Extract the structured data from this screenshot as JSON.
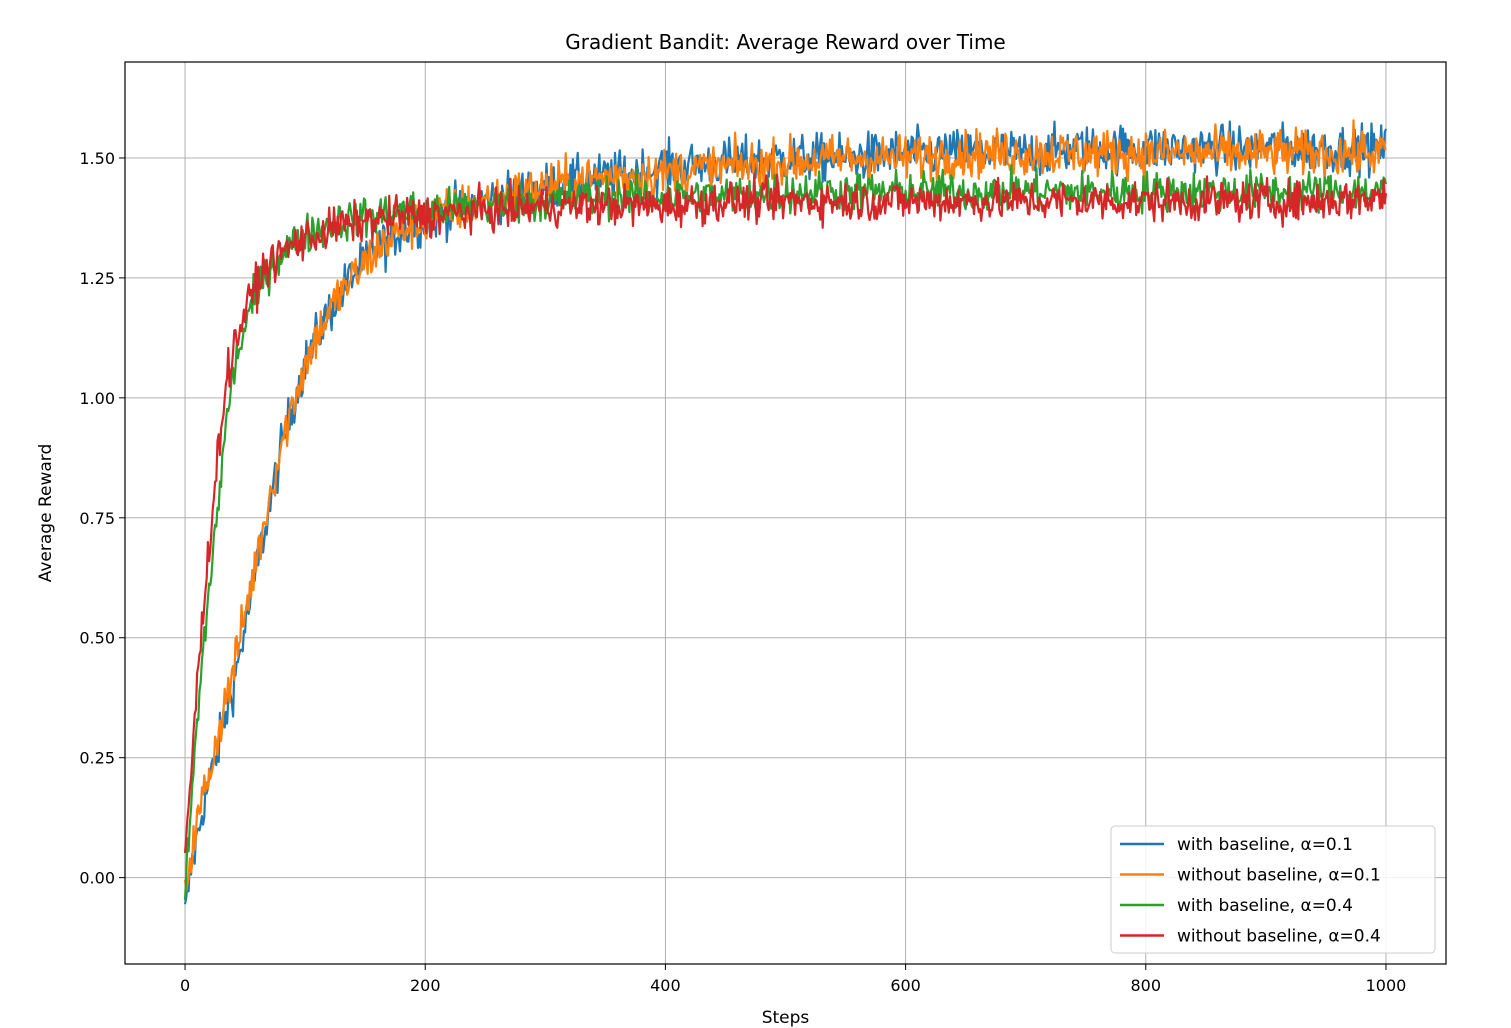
{
  "chart_data": {
    "type": "line",
    "title": "Gradient Bandit: Average Reward over Time",
    "xlabel": "Steps",
    "ylabel": "Average Reward",
    "xlim": [
      -50,
      1050
    ],
    "ylim": [
      -0.18,
      1.7
    ],
    "xticks": [
      0,
      200,
      400,
      600,
      800,
      1000
    ],
    "xtick_labels": [
      "0",
      "200",
      "400",
      "600",
      "800",
      "1000"
    ],
    "yticks": [
      0.0,
      0.25,
      0.5,
      0.75,
      1.0,
      1.25,
      1.5
    ],
    "ytick_labels": [
      "0.00",
      "0.25",
      "0.50",
      "0.75",
      "1.00",
      "1.25",
      "1.50"
    ],
    "grid": true,
    "legend_position": "lower-right",
    "series": [
      {
        "name": "with baseline, α=0.1",
        "color": "#1f77b4",
        "x": [
          0,
          5,
          10,
          15,
          20,
          25,
          30,
          40,
          50,
          60,
          70,
          80,
          90,
          100,
          110,
          120,
          130,
          140,
          150,
          160,
          170,
          180,
          200,
          220,
          250,
          300,
          350,
          400,
          450,
          500,
          550,
          600,
          650,
          700,
          750,
          800,
          850,
          900,
          950,
          1000
        ],
        "y": [
          -0.08,
          0.02,
          0.08,
          0.15,
          0.2,
          0.24,
          0.3,
          0.4,
          0.52,
          0.65,
          0.77,
          0.89,
          0.99,
          1.07,
          1.13,
          1.18,
          1.22,
          1.26,
          1.28,
          1.31,
          1.33,
          1.35,
          1.37,
          1.39,
          1.41,
          1.44,
          1.46,
          1.48,
          1.49,
          1.5,
          1.5,
          1.51,
          1.51,
          1.51,
          1.52,
          1.52,
          1.52,
          1.52,
          1.52,
          1.52
        ]
      },
      {
        "name": "without baseline, α=0.1",
        "color": "#ff7f0e",
        "x": [
          0,
          5,
          10,
          15,
          20,
          25,
          30,
          40,
          50,
          60,
          70,
          80,
          90,
          100,
          110,
          120,
          130,
          140,
          150,
          160,
          170,
          180,
          200,
          220,
          250,
          300,
          350,
          400,
          450,
          500,
          550,
          600,
          650,
          700,
          750,
          800,
          850,
          900,
          950,
          1000
        ],
        "y": [
          -0.02,
          0.05,
          0.11,
          0.17,
          0.22,
          0.27,
          0.33,
          0.43,
          0.55,
          0.67,
          0.79,
          0.9,
          0.99,
          1.07,
          1.13,
          1.18,
          1.22,
          1.25,
          1.28,
          1.31,
          1.33,
          1.35,
          1.37,
          1.39,
          1.41,
          1.44,
          1.46,
          1.47,
          1.48,
          1.49,
          1.5,
          1.5,
          1.51,
          1.51,
          1.51,
          1.51,
          1.51,
          1.51,
          1.51,
          1.51
        ]
      },
      {
        "name": "with baseline, α=0.4",
        "color": "#2ca02c",
        "x": [
          0,
          5,
          10,
          15,
          20,
          25,
          30,
          35,
          40,
          50,
          60,
          70,
          80,
          90,
          100,
          110,
          120,
          130,
          140,
          150,
          160,
          180,
          200,
          250,
          300,
          350,
          400,
          450,
          500,
          550,
          600,
          650,
          700,
          750,
          800,
          850,
          900,
          950,
          1000
        ],
        "y": [
          -0.04,
          0.15,
          0.32,
          0.47,
          0.6,
          0.72,
          0.84,
          0.96,
          1.05,
          1.15,
          1.22,
          1.27,
          1.3,
          1.32,
          1.34,
          1.35,
          1.36,
          1.37,
          1.37,
          1.38,
          1.38,
          1.39,
          1.39,
          1.4,
          1.41,
          1.42,
          1.42,
          1.42,
          1.43,
          1.43,
          1.43,
          1.43,
          1.43,
          1.43,
          1.43,
          1.43,
          1.43,
          1.43,
          1.43
        ]
      },
      {
        "name": "without baseline, α=0.4",
        "color": "#d62728",
        "x": [
          0,
          5,
          10,
          15,
          20,
          25,
          30,
          35,
          40,
          50,
          60,
          70,
          80,
          90,
          100,
          110,
          120,
          130,
          140,
          150,
          160,
          180,
          200,
          250,
          300,
          350,
          400,
          450,
          500,
          550,
          600,
          650,
          700,
          750,
          800,
          850,
          900,
          950,
          1000
        ],
        "y": [
          0.05,
          0.22,
          0.4,
          0.55,
          0.7,
          0.82,
          0.95,
          1.04,
          1.1,
          1.18,
          1.24,
          1.28,
          1.3,
          1.32,
          1.33,
          1.34,
          1.35,
          1.36,
          1.36,
          1.37,
          1.37,
          1.38,
          1.38,
          1.39,
          1.4,
          1.4,
          1.4,
          1.41,
          1.41,
          1.41,
          1.41,
          1.41,
          1.41,
          1.41,
          1.41,
          1.41,
          1.41,
          1.41,
          1.42
        ]
      }
    ]
  }
}
